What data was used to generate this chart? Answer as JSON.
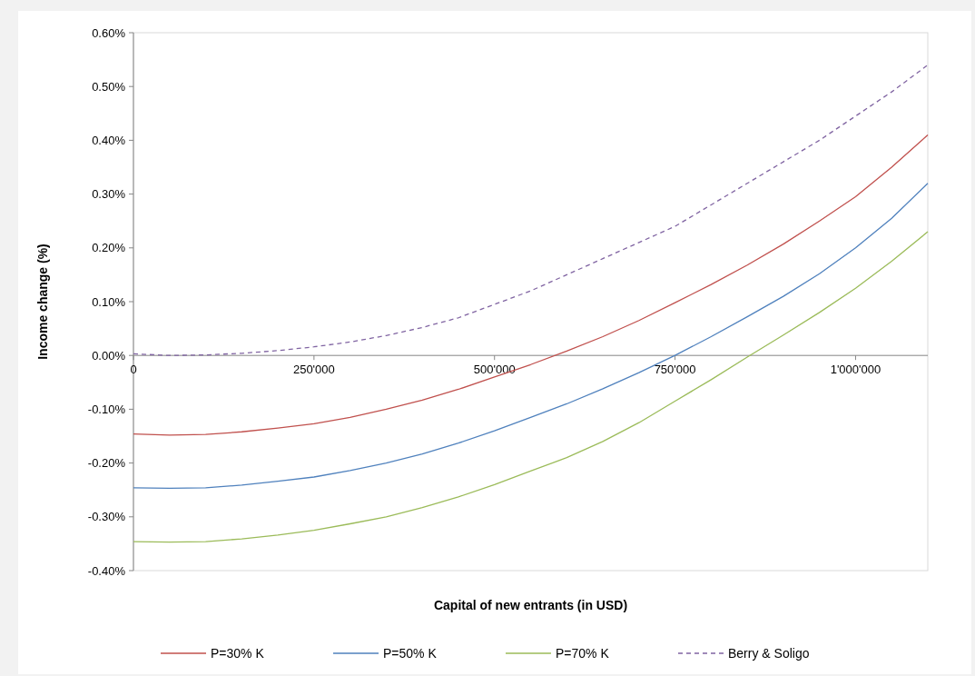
{
  "chart_data": {
    "type": "line",
    "xlabel": "Capital  of new entrants (in USD)",
    "ylabel": "Income change  (%)",
    "x": [
      0,
      50000,
      100000,
      150000,
      200000,
      250000,
      300000,
      350000,
      400000,
      450000,
      500000,
      550000,
      600000,
      650000,
      700000,
      750000,
      800000,
      850000,
      900000,
      950000,
      1000000,
      1050000,
      1100000
    ],
    "xlim": [
      0,
      1100000
    ],
    "xticks": [
      {
        "value": 0,
        "label": "0"
      },
      {
        "value": 250000,
        "label": "250'000"
      },
      {
        "value": 500000,
        "label": "500'000"
      },
      {
        "value": 750000,
        "label": "750'000"
      },
      {
        "value": 1000000,
        "label": "1'000'000"
      }
    ],
    "ylim": [
      -0.4,
      0.6
    ],
    "yticks": [
      {
        "value": -0.4,
        "label": "-0.40%"
      },
      {
        "value": -0.3,
        "label": "-0.30%"
      },
      {
        "value": -0.2,
        "label": "-0.20%"
      },
      {
        "value": -0.1,
        "label": "-0.10%"
      },
      {
        "value": 0,
        "label": "0.00%"
      },
      {
        "value": 0.1,
        "label": "0.10%"
      },
      {
        "value": 0.2,
        "label": "0.20%"
      },
      {
        "value": 0.3,
        "label": "0.30%"
      },
      {
        "value": 0.4,
        "label": "0.40%"
      },
      {
        "value": 0.5,
        "label": "0.50%"
      },
      {
        "value": 0.6,
        "label": "0.60%"
      }
    ],
    "legend": "bottom",
    "grid": false,
    "series": [
      {
        "name": "P=30% K",
        "color": "#c0504d",
        "line_style": "solid",
        "values": [
          -0.146,
          -0.148,
          -0.147,
          -0.142,
          -0.135,
          -0.127,
          -0.115,
          -0.1,
          -0.083,
          -0.063,
          -0.04,
          -0.017,
          0.008,
          0.035,
          0.065,
          0.098,
          0.132,
          0.168,
          0.207,
          0.25,
          0.295,
          0.35,
          0.41
        ]
      },
      {
        "name": "P=50% K",
        "color": "#4f81bd",
        "line_style": "solid",
        "values": [
          -0.246,
          -0.247,
          -0.246,
          -0.241,
          -0.234,
          -0.226,
          -0.214,
          -0.2,
          -0.183,
          -0.163,
          -0.14,
          -0.115,
          -0.09,
          -0.062,
          -0.032,
          0.0,
          0.035,
          0.072,
          0.11,
          0.152,
          0.2,
          0.255,
          0.32
        ]
      },
      {
        "name": "P=70% K",
        "color": "#9bbb59",
        "line_style": "solid",
        "values": [
          -0.346,
          -0.347,
          -0.346,
          -0.341,
          -0.334,
          -0.325,
          -0.313,
          -0.3,
          -0.283,
          -0.263,
          -0.24,
          -0.215,
          -0.19,
          -0.16,
          -0.125,
          -0.085,
          -0.045,
          -0.003,
          0.038,
          0.08,
          0.125,
          0.175,
          0.23
        ]
      },
      {
        "name": "Berry & Soligo",
        "color": "#8064a2",
        "line_style": "dashed",
        "values": [
          0.003,
          0.0,
          0.001,
          0.004,
          0.009,
          0.016,
          0.025,
          0.037,
          0.052,
          0.07,
          0.095,
          0.12,
          0.15,
          0.18,
          0.21,
          0.24,
          0.28,
          0.32,
          0.36,
          0.4,
          0.445,
          0.49,
          0.54
        ]
      }
    ]
  }
}
